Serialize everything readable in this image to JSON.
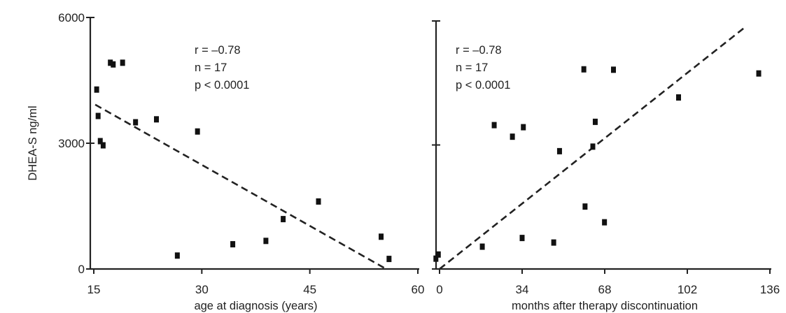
{
  "chart_data": [
    {
      "type": "scatter",
      "xlabel": "age at diagnosis (years)",
      "ylabel": "DHEA-S ng/ml",
      "xlim": [
        15,
        60
      ],
      "ylim": [
        0,
        6000
      ],
      "x_ticks": [
        15,
        30,
        45,
        60
      ],
      "y_ticks": [
        0,
        3000,
        6000
      ],
      "annotations": [
        "r = –0.78",
        "n = 17",
        "p < 0.0001"
      ],
      "points": [
        {
          "x": 15.4,
          "y": 4280
        },
        {
          "x": 15.6,
          "y": 3650
        },
        {
          "x": 15.9,
          "y": 3050
        },
        {
          "x": 16.3,
          "y": 2950
        },
        {
          "x": 17.3,
          "y": 4920
        },
        {
          "x": 17.7,
          "y": 4880
        },
        {
          "x": 19.0,
          "y": 4920
        },
        {
          "x": 20.8,
          "y": 3500
        },
        {
          "x": 23.7,
          "y": 3570
        },
        {
          "x": 26.6,
          "y": 320
        },
        {
          "x": 29.4,
          "y": 3280
        },
        {
          "x": 34.3,
          "y": 590
        },
        {
          "x": 38.9,
          "y": 670
        },
        {
          "x": 41.3,
          "y": 1190
        },
        {
          "x": 46.2,
          "y": 1610
        },
        {
          "x": 54.9,
          "y": 770
        },
        {
          "x": 56.0,
          "y": 240
        }
      ],
      "trendline": [
        {
          "x": 15.2,
          "y": 3920
        },
        {
          "x": 55.6,
          "y": 0
        }
      ]
    },
    {
      "type": "scatter",
      "xlabel": "months after therapy discontinuation",
      "ylabel": "",
      "xlim": [
        0,
        136
      ],
      "ylim": [
        0,
        6000
      ],
      "x_ticks": [
        0,
        34,
        68,
        102,
        136
      ],
      "y_ticks": [
        0,
        3000,
        6000
      ],
      "annotations": [
        "r = –0.78",
        "n = 17",
        "p < 0.0001"
      ],
      "points": [
        {
          "x": -1.5,
          "y": 250
        },
        {
          "x": -0.5,
          "y": 350
        },
        {
          "x": 17.6,
          "y": 540
        },
        {
          "x": 22.5,
          "y": 3480
        },
        {
          "x": 30.0,
          "y": 3200
        },
        {
          "x": 34.0,
          "y": 750
        },
        {
          "x": 34.5,
          "y": 3430
        },
        {
          "x": 47.0,
          "y": 640
        },
        {
          "x": 49.4,
          "y": 2850
        },
        {
          "x": 59.4,
          "y": 4830
        },
        {
          "x": 59.9,
          "y": 1510
        },
        {
          "x": 63.1,
          "y": 2960
        },
        {
          "x": 64.1,
          "y": 3560
        },
        {
          "x": 67.9,
          "y": 1130
        },
        {
          "x": 71.6,
          "y": 4820
        },
        {
          "x": 98.4,
          "y": 4150
        },
        {
          "x": 131.4,
          "y": 4730
        }
      ],
      "trendline": [
        {
          "x": 0,
          "y": 0
        },
        {
          "x": 126,
          "y": 5860
        }
      ]
    }
  ]
}
